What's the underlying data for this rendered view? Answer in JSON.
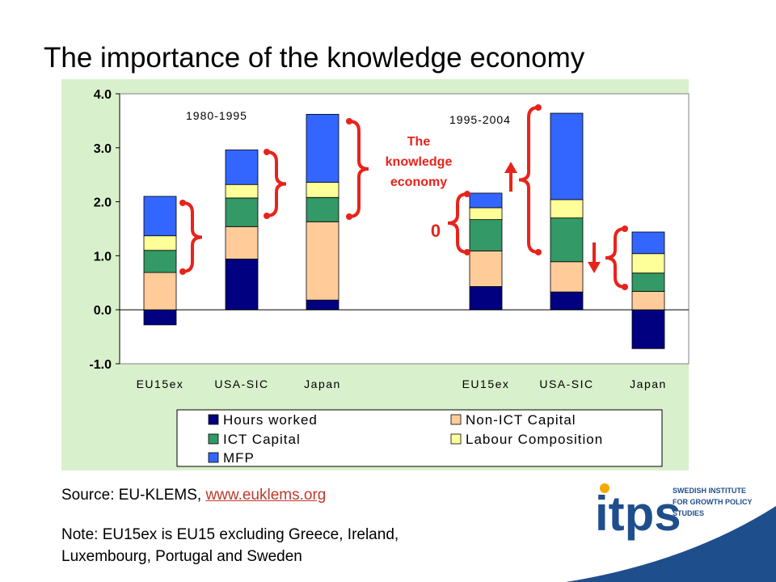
{
  "slide": {
    "title": "The importance of the knowledge economy",
    "source_prefix": "Source: EU-KLEMS, ",
    "source_link": "www.euklems.org",
    "note_line1": "Note: EU15ex is EU15 excluding Greece, Ireland,",
    "note_line2": "Luxembourg, Portugal and Sweden"
  },
  "logo": {
    "mark": "itps",
    "line1": "SWEDISH INSTITUTE",
    "line2": "FOR GROWTH POLICY",
    "line3": "STUDIES",
    "color": "#1f4e8c",
    "accent": "#f2a900"
  },
  "colors": {
    "panel": "#d9f0cc",
    "annotation": "#e8231b",
    "hours": "#000080",
    "non_ict": "#ffcc99",
    "ict": "#339966",
    "labour": "#ffff99",
    "mfp": "#3366ff"
  },
  "chart_data": {
    "type": "bar",
    "stacked": true,
    "categories": [
      "EU15ex",
      "USA-SIC",
      "Japan",
      "EU15ex",
      "USA-SIC",
      "Japan"
    ],
    "ylim": [
      -1.0,
      4.0
    ],
    "yticks": [
      "-1.0",
      "0.0",
      "1.0",
      "2.0",
      "3.0",
      "4.0"
    ],
    "period_labels": [
      "1980-1995",
      "1995-2004"
    ],
    "series": [
      {
        "name": "Hours worked",
        "values": [
          -0.28,
          0.94,
          0.18,
          0.43,
          0.33,
          -0.72
        ]
      },
      {
        "name": "Non-ICT Capital",
        "values": [
          0.69,
          0.6,
          1.45,
          0.66,
          0.56,
          0.34
        ]
      },
      {
        "name": "ICT Capital",
        "values": [
          0.41,
          0.53,
          0.45,
          0.58,
          0.81,
          0.34
        ]
      },
      {
        "name": "Labour Composition",
        "values": [
          0.27,
          0.25,
          0.28,
          0.22,
          0.34,
          0.36
        ]
      },
      {
        "name": "MFP",
        "values": [
          0.73,
          0.64,
          1.26,
          0.27,
          1.6,
          0.4
        ]
      }
    ],
    "annotation": {
      "line1": "The",
      "line2": "knowledge",
      "line3": "economy",
      "zero_label": "0"
    },
    "legend": "bottom",
    "grid": false
  }
}
